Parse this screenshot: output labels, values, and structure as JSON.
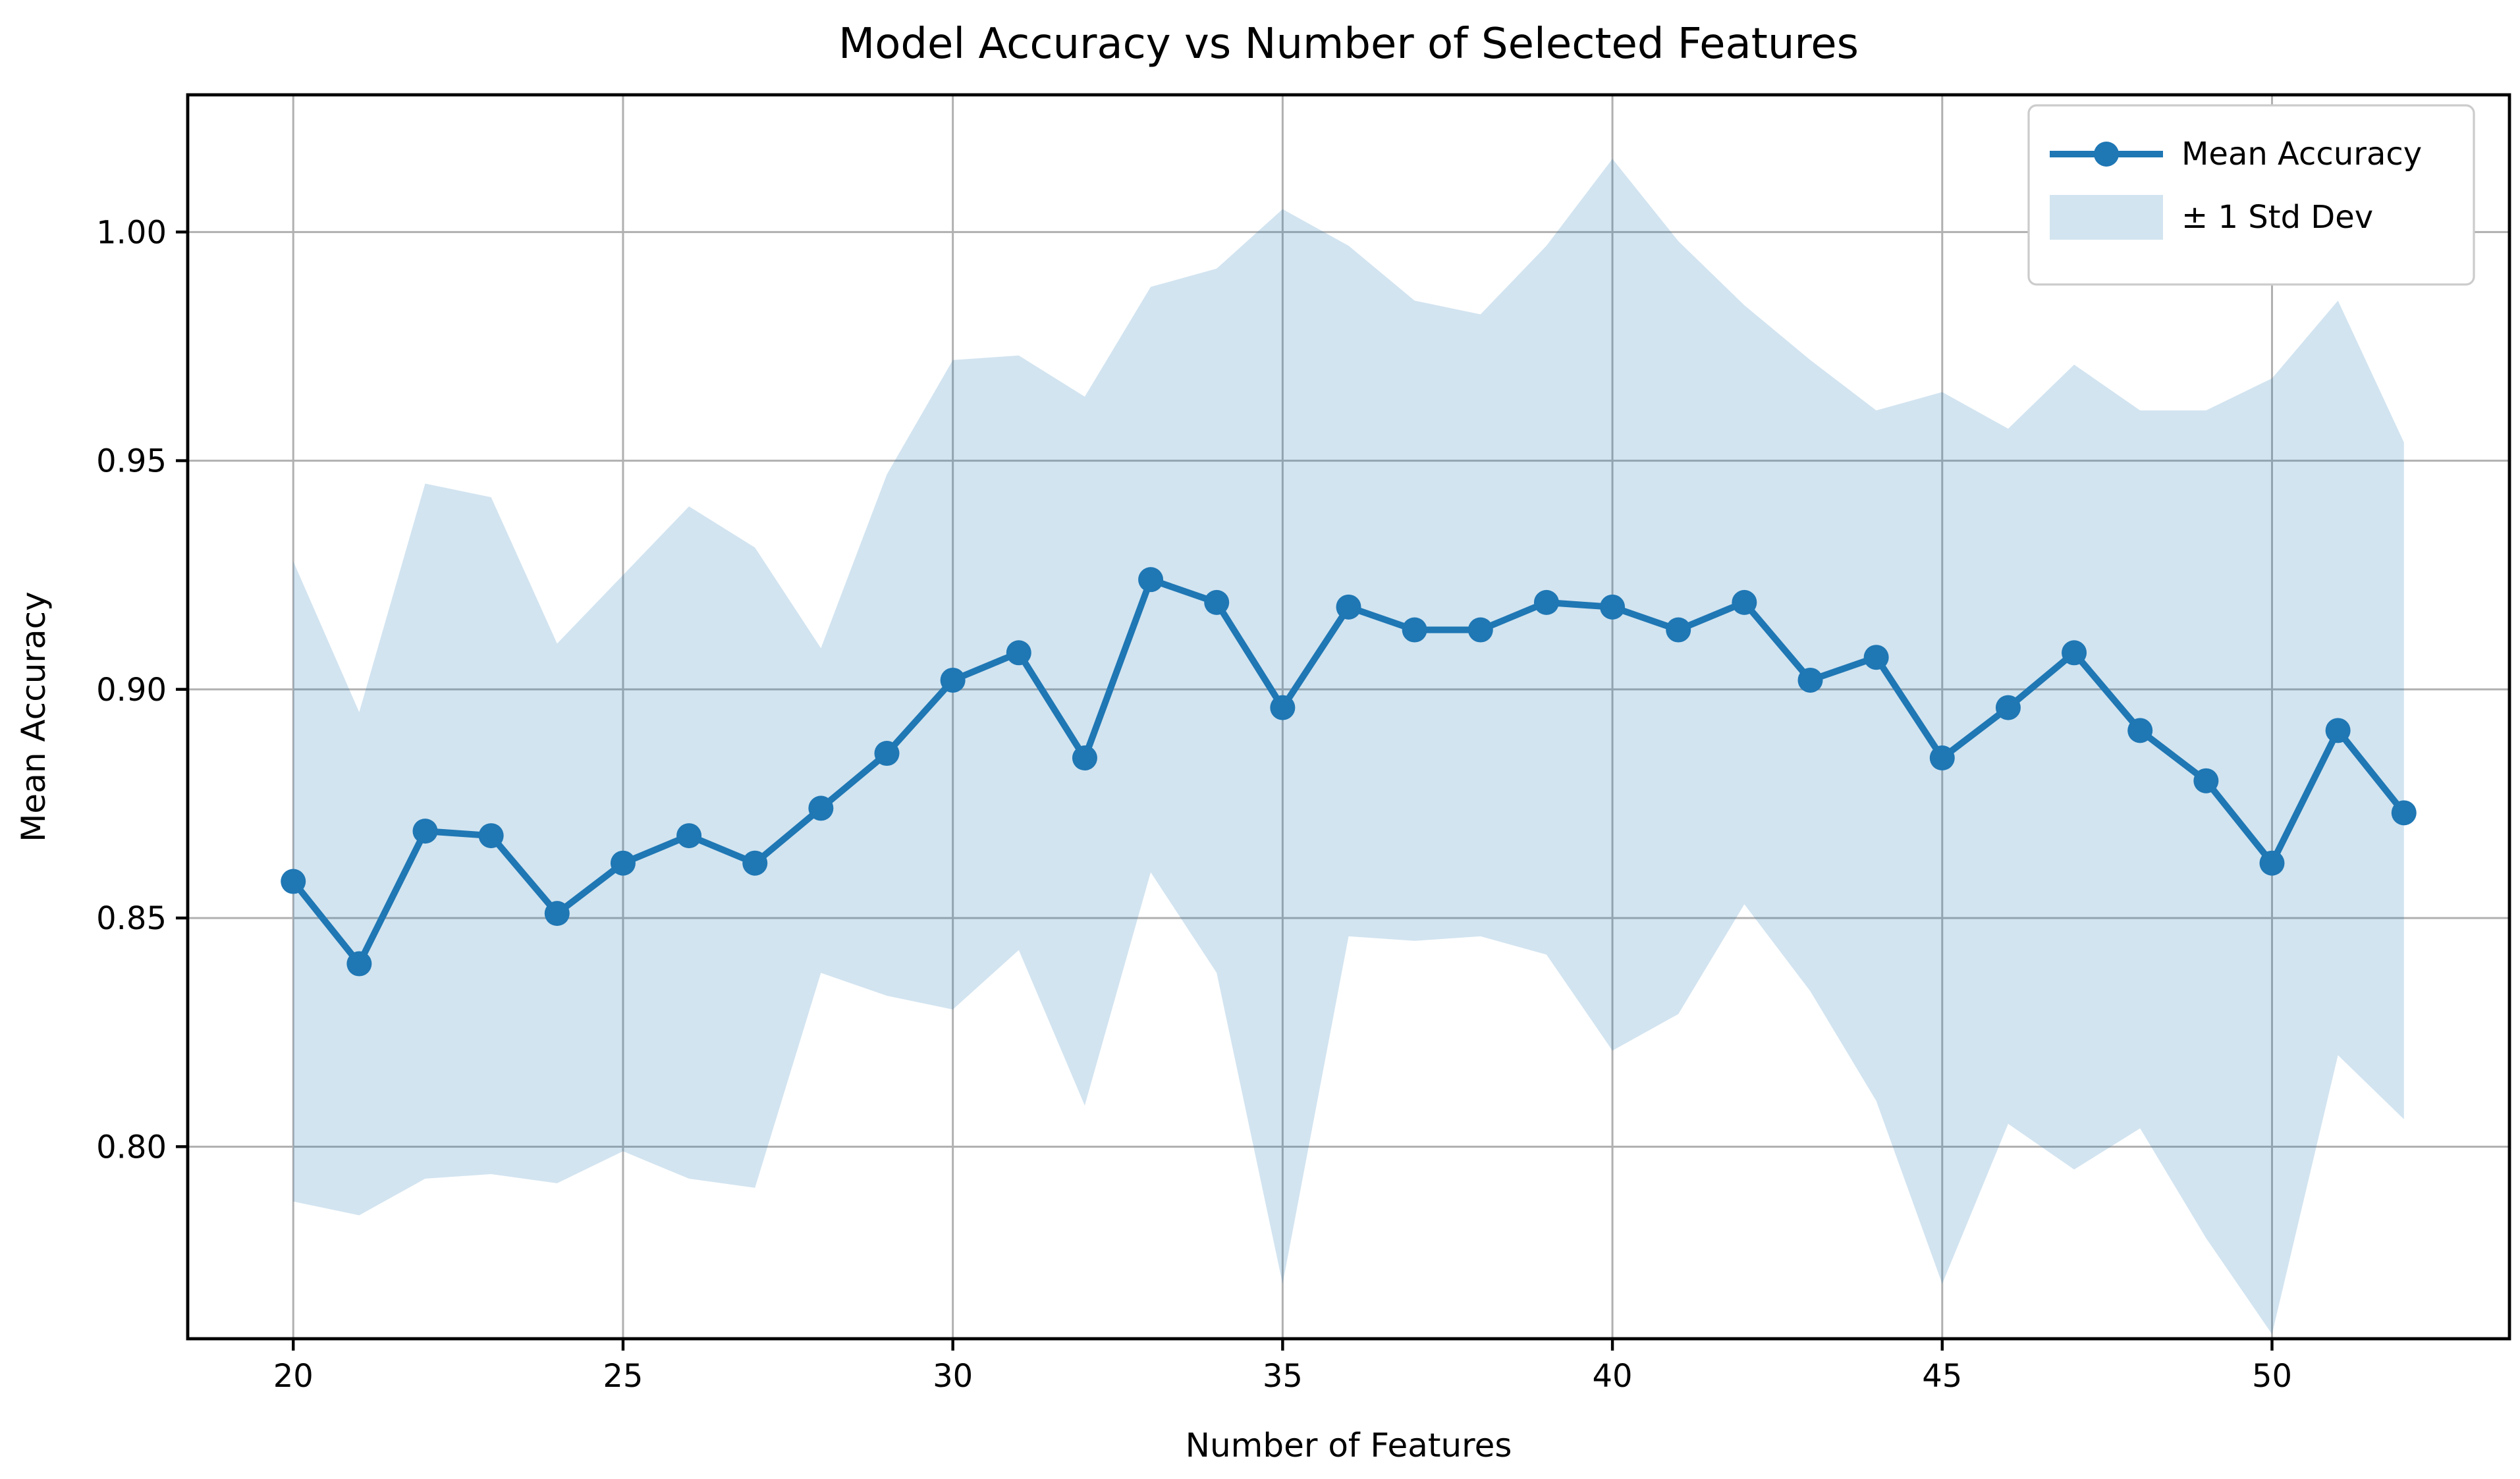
{
  "figure": {
    "background": "#ffffff"
  },
  "chart_data": {
    "type": "line",
    "title": "Model Accuracy vs Number of Selected Features",
    "xlabel": "Number of Features",
    "ylabel": "Mean Accuracy",
    "x": [
      20,
      21,
      22,
      23,
      24,
      25,
      26,
      27,
      28,
      29,
      30,
      31,
      32,
      33,
      34,
      35,
      36,
      37,
      38,
      39,
      40,
      41,
      42,
      43,
      44,
      45,
      46,
      47,
      48,
      49,
      50,
      51,
      52
    ],
    "series": [
      {
        "name": "Mean Accuracy",
        "marker": "circle",
        "values": [
          0.858,
          0.84,
          0.869,
          0.868,
          0.851,
          0.862,
          0.868,
          0.862,
          0.874,
          0.886,
          0.902,
          0.908,
          0.885,
          0.924,
          0.919,
          0.896,
          0.918,
          0.913,
          0.913,
          0.919,
          0.918,
          0.913,
          0.919,
          0.902,
          0.907,
          0.885,
          0.896,
          0.908,
          0.891,
          0.88,
          0.862,
          0.891,
          0.873
        ]
      }
    ],
    "band": {
      "name": "± 1 Std Dev",
      "upper": [
        0.928,
        0.895,
        0.945,
        0.942,
        0.91,
        0.925,
        0.94,
        0.931,
        0.909,
        0.947,
        0.972,
        0.973,
        0.964,
        0.988,
        0.992,
        1.005,
        0.997,
        0.985,
        0.982,
        0.997,
        1.016,
        0.998,
        0.984,
        0.972,
        0.961,
        0.965,
        0.957,
        0.971,
        0.961,
        0.961,
        0.968,
        0.985,
        0.954
      ],
      "lower": [
        0.788,
        0.785,
        0.793,
        0.794,
        0.792,
        0.799,
        0.793,
        0.791,
        0.838,
        0.833,
        0.83,
        0.843,
        0.809,
        0.86,
        0.838,
        0.77,
        0.846,
        0.845,
        0.846,
        0.842,
        0.821,
        0.829,
        0.853,
        0.834,
        0.81,
        0.77,
        0.805,
        0.795,
        0.804,
        0.78,
        0.759,
        0.82,
        0.806
      ]
    },
    "xlim": [
      18.4,
      53.6
    ],
    "ylim": [
      0.758,
      1.03
    ],
    "xticks": [
      20,
      25,
      30,
      35,
      40,
      45,
      50
    ],
    "xtick_labels": [
      "20",
      "25",
      "30",
      "35",
      "40",
      "45",
      "50"
    ],
    "yticks": [
      0.8,
      0.85,
      0.9,
      0.95,
      1.0
    ],
    "ytick_labels": [
      "0.80",
      "0.85",
      "0.90",
      "0.95",
      "1.00"
    ],
    "grid": true,
    "legend_position": "upper right",
    "colors": {
      "line": "#1f77b4",
      "marker": "#1f77b4",
      "band_fill": "rgba(31,119,180,0.2)",
      "grid": "#b0b0b0",
      "spine": "#000000",
      "background": "#ffffff",
      "legend_border": "#cccccc"
    }
  },
  "legend": {
    "items": [
      {
        "label": "Mean Accuracy",
        "swatch": "line-marker"
      },
      {
        "label": "± 1 Std Dev",
        "swatch": "patch"
      }
    ]
  }
}
